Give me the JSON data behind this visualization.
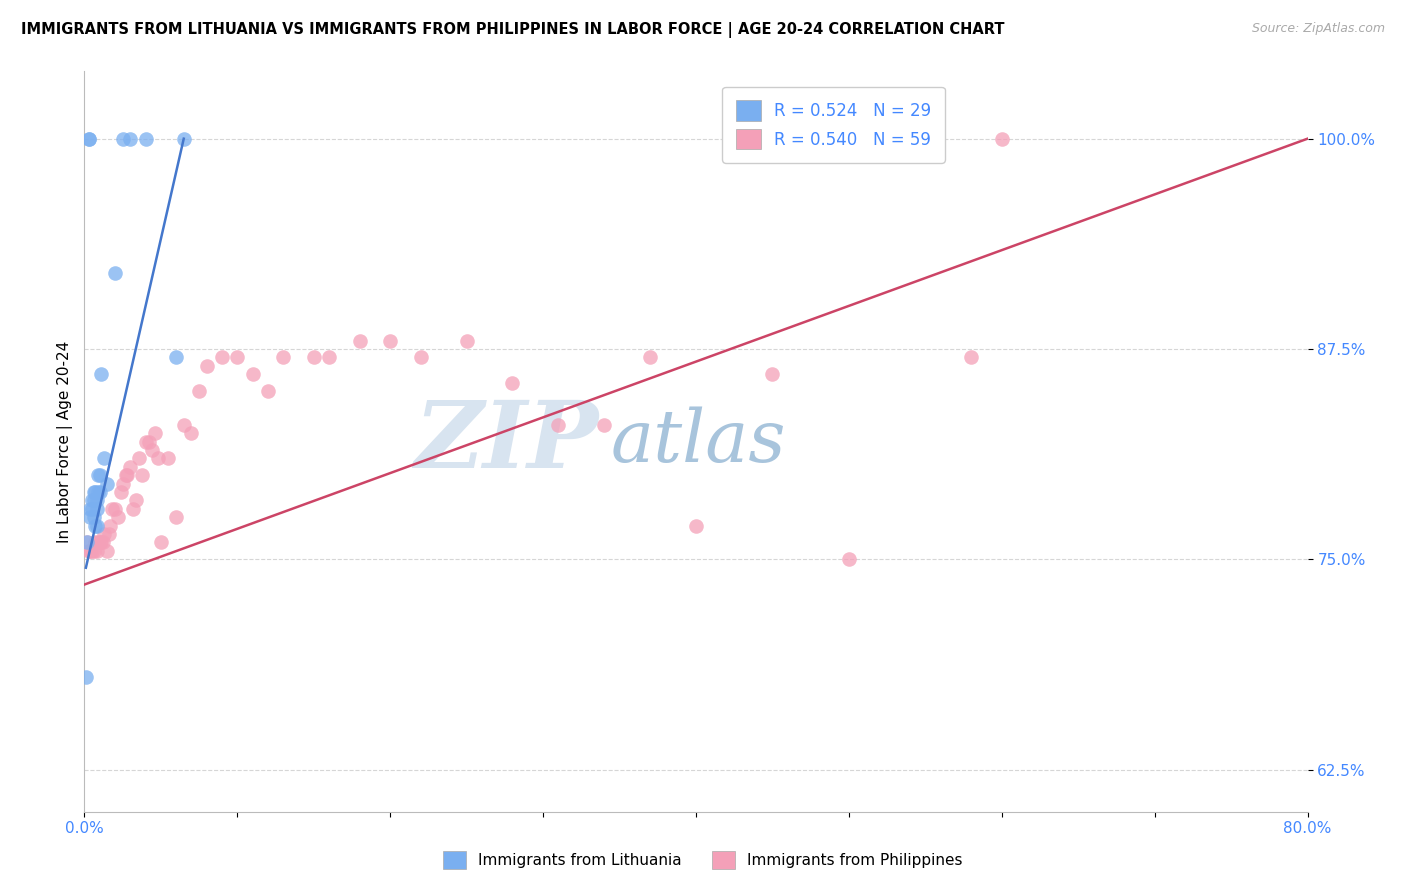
{
  "title": "IMMIGRANTS FROM LITHUANIA VS IMMIGRANTS FROM PHILIPPINES IN LABOR FORCE | AGE 20-24 CORRELATION CHART",
  "source": "Source: ZipAtlas.com",
  "ylabel": "In Labor Force | Age 20-24",
  "xlim": [
    0.0,
    0.8
  ],
  "ylim": [
    0.6,
    1.04
  ],
  "xticks": [
    0.0,
    0.1,
    0.2,
    0.3,
    0.4,
    0.5,
    0.6,
    0.7,
    0.8
  ],
  "xticklabels": [
    "0.0%",
    "",
    "",
    "",
    "",
    "",
    "",
    "",
    "80.0%"
  ],
  "yticks": [
    0.625,
    0.75,
    0.875,
    1.0
  ],
  "yticklabels": [
    "62.5%",
    "75.0%",
    "87.5%",
    "100.0%"
  ],
  "R_lithuania": 0.524,
  "N_lithuania": 29,
  "R_philippines": 0.54,
  "N_philippines": 59,
  "blue_color": "#7aaff0",
  "pink_color": "#f4a0b8",
  "blue_line_color": "#4477cc",
  "pink_line_color": "#cc4466",
  "watermark_zip": "ZIP",
  "watermark_atlas": "atlas",
  "watermark_color_zip": "#c8d4e8",
  "watermark_color_atlas": "#99bbdd",
  "lithuania_x": [
    0.001,
    0.002,
    0.003,
    0.003,
    0.004,
    0.004,
    0.005,
    0.005,
    0.006,
    0.006,
    0.006,
    0.007,
    0.007,
    0.008,
    0.008,
    0.008,
    0.009,
    0.009,
    0.01,
    0.01,
    0.011,
    0.013,
    0.015,
    0.02,
    0.025,
    0.03,
    0.04,
    0.06,
    0.065
  ],
  "lithuania_y": [
    0.68,
    0.76,
    1.0,
    1.0,
    0.775,
    0.78,
    0.785,
    0.78,
    0.775,
    0.785,
    0.79,
    0.77,
    0.79,
    0.78,
    0.785,
    0.77,
    0.79,
    0.8,
    0.79,
    0.8,
    0.86,
    0.81,
    0.795,
    0.92,
    1.0,
    1.0,
    1.0,
    0.87,
    1.0
  ],
  "philippines_x": [
    0.002,
    0.003,
    0.004,
    0.005,
    0.006,
    0.007,
    0.008,
    0.009,
    0.01,
    0.011,
    0.012,
    0.013,
    0.015,
    0.016,
    0.017,
    0.018,
    0.02,
    0.022,
    0.024,
    0.025,
    0.027,
    0.028,
    0.03,
    0.032,
    0.034,
    0.036,
    0.038,
    0.04,
    0.042,
    0.044,
    0.046,
    0.048,
    0.05,
    0.055,
    0.06,
    0.065,
    0.07,
    0.075,
    0.08,
    0.09,
    0.1,
    0.11,
    0.12,
    0.13,
    0.15,
    0.16,
    0.18,
    0.2,
    0.22,
    0.25,
    0.28,
    0.31,
    0.34,
    0.37,
    0.4,
    0.45,
    0.5,
    0.58,
    0.6
  ],
  "philippines_y": [
    0.76,
    0.755,
    0.755,
    0.755,
    0.755,
    0.76,
    0.755,
    0.76,
    0.76,
    0.76,
    0.76,
    0.765,
    0.755,
    0.765,
    0.77,
    0.78,
    0.78,
    0.775,
    0.79,
    0.795,
    0.8,
    0.8,
    0.805,
    0.78,
    0.785,
    0.81,
    0.8,
    0.82,
    0.82,
    0.815,
    0.825,
    0.81,
    0.76,
    0.81,
    0.775,
    0.83,
    0.825,
    0.85,
    0.865,
    0.87,
    0.87,
    0.86,
    0.85,
    0.87,
    0.87,
    0.87,
    0.88,
    0.88,
    0.87,
    0.88,
    0.855,
    0.83,
    0.83,
    0.87,
    0.77,
    0.86,
    0.75,
    0.87,
    1.0
  ],
  "blue_trendline_x": [
    0.001,
    0.065
  ],
  "blue_trendline_y": [
    0.745,
    1.0
  ],
  "pink_trendline_x": [
    0.0,
    0.8
  ],
  "pink_trendline_y": [
    0.735,
    1.0
  ]
}
